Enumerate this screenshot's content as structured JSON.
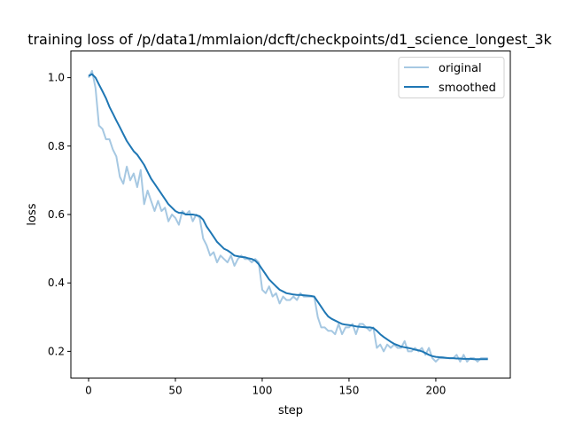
{
  "chart_data": {
    "type": "line",
    "title": "training loss of /p/data1/mmlaion/dcft/checkpoints/d1_science_longest_3k",
    "xlabel": "step",
    "ylabel": "loss",
    "xlim": [
      -10.2,
      242.9
    ],
    "ylim": [
      0.122,
      1.078
    ],
    "xticks": [
      0,
      50,
      100,
      150,
      200
    ],
    "yticks": [
      0.2,
      0.4,
      0.6,
      0.8,
      1.0
    ],
    "ytick_labels": [
      "0.2",
      "0.4",
      "0.6",
      "0.8",
      "1.0"
    ],
    "grid": false,
    "legend_position": "top-right",
    "x": [
      0,
      2,
      4,
      6,
      8,
      10,
      12,
      14,
      16,
      18,
      20,
      22,
      24,
      26,
      28,
      30,
      32,
      34,
      36,
      38,
      40,
      42,
      44,
      46,
      48,
      50,
      52,
      54,
      56,
      58,
      60,
      62,
      64,
      66,
      68,
      70,
      72,
      74,
      76,
      78,
      80,
      82,
      84,
      86,
      88,
      90,
      92,
      94,
      96,
      98,
      100,
      102,
      104,
      106,
      108,
      110,
      112,
      114,
      116,
      118,
      120,
      122,
      124,
      126,
      128,
      130,
      132,
      134,
      136,
      138,
      140,
      142,
      144,
      146,
      148,
      150,
      152,
      154,
      156,
      158,
      160,
      162,
      164,
      166,
      168,
      170,
      172,
      174,
      176,
      178,
      180,
      182,
      184,
      186,
      188,
      190,
      192,
      194,
      196,
      198,
      200,
      202,
      204,
      206,
      208,
      210,
      212,
      214,
      216,
      218,
      220,
      222,
      224,
      226,
      228,
      230
    ],
    "series": [
      {
        "name": "original",
        "color": "#a6c8e2",
        "values": [
          1.0,
          1.02,
          0.97,
          0.86,
          0.85,
          0.82,
          0.82,
          0.79,
          0.77,
          0.71,
          0.69,
          0.74,
          0.7,
          0.72,
          0.68,
          0.73,
          0.63,
          0.67,
          0.64,
          0.61,
          0.64,
          0.61,
          0.62,
          0.58,
          0.6,
          0.59,
          0.57,
          0.61,
          0.6,
          0.61,
          0.58,
          0.6,
          0.59,
          0.53,
          0.51,
          0.48,
          0.49,
          0.46,
          0.48,
          0.47,
          0.46,
          0.48,
          0.45,
          0.47,
          0.48,
          0.47,
          0.47,
          0.46,
          0.47,
          0.46,
          0.38,
          0.37,
          0.39,
          0.36,
          0.37,
          0.34,
          0.36,
          0.35,
          0.35,
          0.36,
          0.35,
          0.37,
          0.36,
          0.36,
          0.36,
          0.36,
          0.3,
          0.27,
          0.27,
          0.26,
          0.26,
          0.25,
          0.28,
          0.25,
          0.27,
          0.27,
          0.28,
          0.25,
          0.28,
          0.28,
          0.27,
          0.26,
          0.27,
          0.21,
          0.22,
          0.2,
          0.22,
          0.21,
          0.22,
          0.21,
          0.21,
          0.23,
          0.2,
          0.2,
          0.21,
          0.2,
          0.21,
          0.19,
          0.21,
          0.18,
          0.17,
          0.18,
          0.18,
          0.18,
          0.18,
          0.18,
          0.19,
          0.17,
          0.19,
          0.17,
          0.18,
          0.18,
          0.17,
          0.18,
          0.18,
          0.18
        ]
      },
      {
        "name": "smoothed",
        "color": "#1f77b4",
        "values": [
          1.005,
          1.01,
          1.0,
          0.98,
          0.96,
          0.94,
          0.915,
          0.895,
          0.875,
          0.855,
          0.835,
          0.815,
          0.8,
          0.785,
          0.775,
          0.76,
          0.745,
          0.725,
          0.705,
          0.69,
          0.675,
          0.66,
          0.645,
          0.63,
          0.62,
          0.61,
          0.605,
          0.605,
          0.6,
          0.6,
          0.6,
          0.598,
          0.595,
          0.585,
          0.565,
          0.55,
          0.535,
          0.52,
          0.51,
          0.5,
          0.495,
          0.488,
          0.48,
          0.478,
          0.476,
          0.475,
          0.472,
          0.47,
          0.465,
          0.455,
          0.44,
          0.425,
          0.41,
          0.4,
          0.39,
          0.38,
          0.375,
          0.37,
          0.368,
          0.366,
          0.365,
          0.365,
          0.364,
          0.363,
          0.362,
          0.36,
          0.345,
          0.33,
          0.315,
          0.302,
          0.295,
          0.29,
          0.285,
          0.28,
          0.278,
          0.277,
          0.275,
          0.273,
          0.272,
          0.271,
          0.27,
          0.27,
          0.268,
          0.26,
          0.25,
          0.242,
          0.235,
          0.228,
          0.222,
          0.218,
          0.214,
          0.212,
          0.21,
          0.208,
          0.205,
          0.203,
          0.2,
          0.195,
          0.19,
          0.186,
          0.184,
          0.183,
          0.182,
          0.181,
          0.18,
          0.18,
          0.179,
          0.179,
          0.178,
          0.178,
          0.178,
          0.177,
          0.177,
          0.177,
          0.177,
          0.177
        ]
      }
    ]
  }
}
